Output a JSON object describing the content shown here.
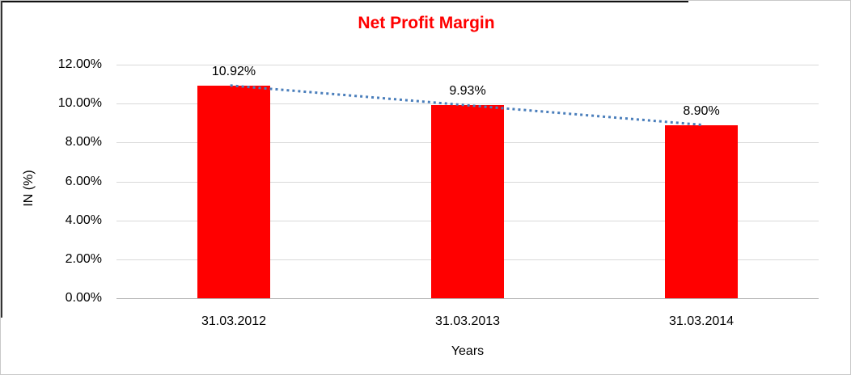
{
  "chart_data": {
    "type": "bar",
    "title": "Net Profit Margin",
    "title_color": "#FF0000",
    "xlabel": "Years",
    "ylabel": "IN (%)",
    "categories": [
      "31.03.2012",
      "31.03.2013",
      "31.03.2014"
    ],
    "values": [
      10.92,
      9.93,
      8.9
    ],
    "data_labels": [
      "10.92%",
      "9.93%",
      "8.90%"
    ],
    "ytick_labels": [
      "0.00%",
      "2.00%",
      "4.00%",
      "6.00%",
      "8.00%",
      "10.00%",
      "12.00%"
    ],
    "ytick_values": [
      0,
      2,
      4,
      6,
      8,
      10,
      12
    ],
    "ylim": [
      0,
      12
    ],
    "grid": true,
    "legend": "none",
    "bar_color": "#FF0000",
    "gridline_color": "#D9D9D9",
    "axisline_color": "#B3B3B3",
    "trendline": {
      "type": "linear",
      "style": "dotted",
      "color": "#4A7EBB",
      "fitted_start_value": 10.93,
      "fitted_end_value": 8.91
    }
  }
}
